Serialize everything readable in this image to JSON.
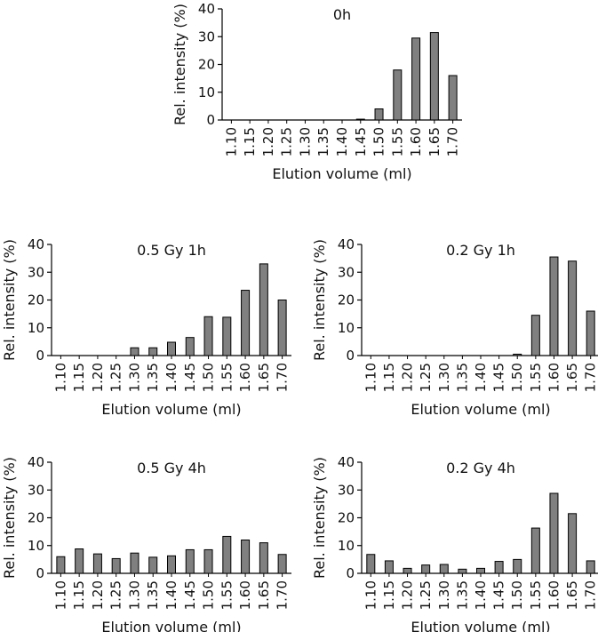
{
  "colors": {
    "bar_fill": "#808080",
    "bar_stroke": "#000000",
    "axis": "#000000"
  },
  "chart_data": [
    {
      "type": "bar",
      "title": "0h",
      "xlabel": "Elution volume (ml)",
      "ylabel": "Rel. intensity (%)",
      "ylim": [
        0,
        40
      ],
      "yticks": [
        "0",
        "10",
        "20",
        "30",
        "40"
      ],
      "categories": [
        "1.10",
        "1.15",
        "1.20",
        "1.25",
        "1.30",
        "1.35",
        "1.40",
        "1.45",
        "1.50",
        "1.55",
        "1.60",
        "1.65",
        "1.70"
      ],
      "values": [
        0,
        0,
        0,
        0,
        0,
        0,
        0,
        0.3,
        4,
        18,
        29.5,
        31.5,
        16
      ]
    },
    {
      "type": "bar",
      "title": "0.5 Gy 1h",
      "xlabel": "Elution volume (ml)",
      "ylabel": "Rel. intensity (%)",
      "ylim": [
        0,
        40
      ],
      "yticks": [
        "0",
        "10",
        "20",
        "30",
        "40"
      ],
      "categories": [
        "1.10",
        "1.15",
        "1.20",
        "1.25",
        "1.30",
        "1.35",
        "1.40",
        "1.45",
        "1.50",
        "1.55",
        "1.60",
        "1.65",
        "1.70"
      ],
      "values": [
        0,
        0,
        0,
        0,
        2.8,
        2.8,
        4.8,
        6.5,
        14,
        13.8,
        23.5,
        33,
        20
      ]
    },
    {
      "type": "bar",
      "title": "0.2 Gy 1h",
      "xlabel": "Elution volume (ml)",
      "ylabel": "Rel. intensity (%)",
      "ylim": [
        0,
        40
      ],
      "yticks": [
        "0",
        "10",
        "20",
        "30",
        "40"
      ],
      "categories": [
        "1.10",
        "1.15",
        "1.20",
        "1.25",
        "1.30",
        "1.35",
        "1.40",
        "1.45",
        "1.50",
        "1.55",
        "1.60",
        "1.65",
        "1.70"
      ],
      "values": [
        0,
        0,
        0,
        0,
        0,
        0,
        0,
        0,
        0.5,
        14.5,
        35.5,
        34,
        16
      ]
    },
    {
      "type": "bar",
      "title": "0.5 Gy 4h",
      "xlabel": "Elution volume (ml)",
      "ylabel": "Rel. intensity (%)",
      "ylim": [
        0,
        40
      ],
      "yticks": [
        "0",
        "10",
        "20",
        "30",
        "40"
      ],
      "categories": [
        "1.10",
        "1.15",
        "1.20",
        "1.25",
        "1.30",
        "1.35",
        "1.40",
        "1.45",
        "1.50",
        "1.55",
        "1.60",
        "1.65",
        "1.70"
      ],
      "values": [
        6,
        8.8,
        7,
        5.3,
        7.3,
        5.8,
        6.3,
        8.5,
        8.5,
        13.3,
        12,
        11,
        6.8
      ]
    },
    {
      "type": "bar",
      "title": "0.2 Gy 4h",
      "xlabel": "Elution volume (ml)",
      "ylabel": "Rel. intensity (%)",
      "ylim": [
        0,
        40
      ],
      "yticks": [
        "0",
        "10",
        "20",
        "30",
        "40"
      ],
      "categories": [
        "1.10",
        "1.15",
        "1.20",
        "1.25",
        "1.30",
        "1.35",
        "1.40",
        "1.45",
        "1.50",
        "1.55",
        "1.60",
        "1.65",
        "1.70"
      ],
      "values": [
        6.8,
        4.5,
        1.8,
        3,
        3.2,
        1.5,
        1.8,
        4.3,
        5,
        16.3,
        28.8,
        21.5,
        4.5
      ]
    }
  ]
}
